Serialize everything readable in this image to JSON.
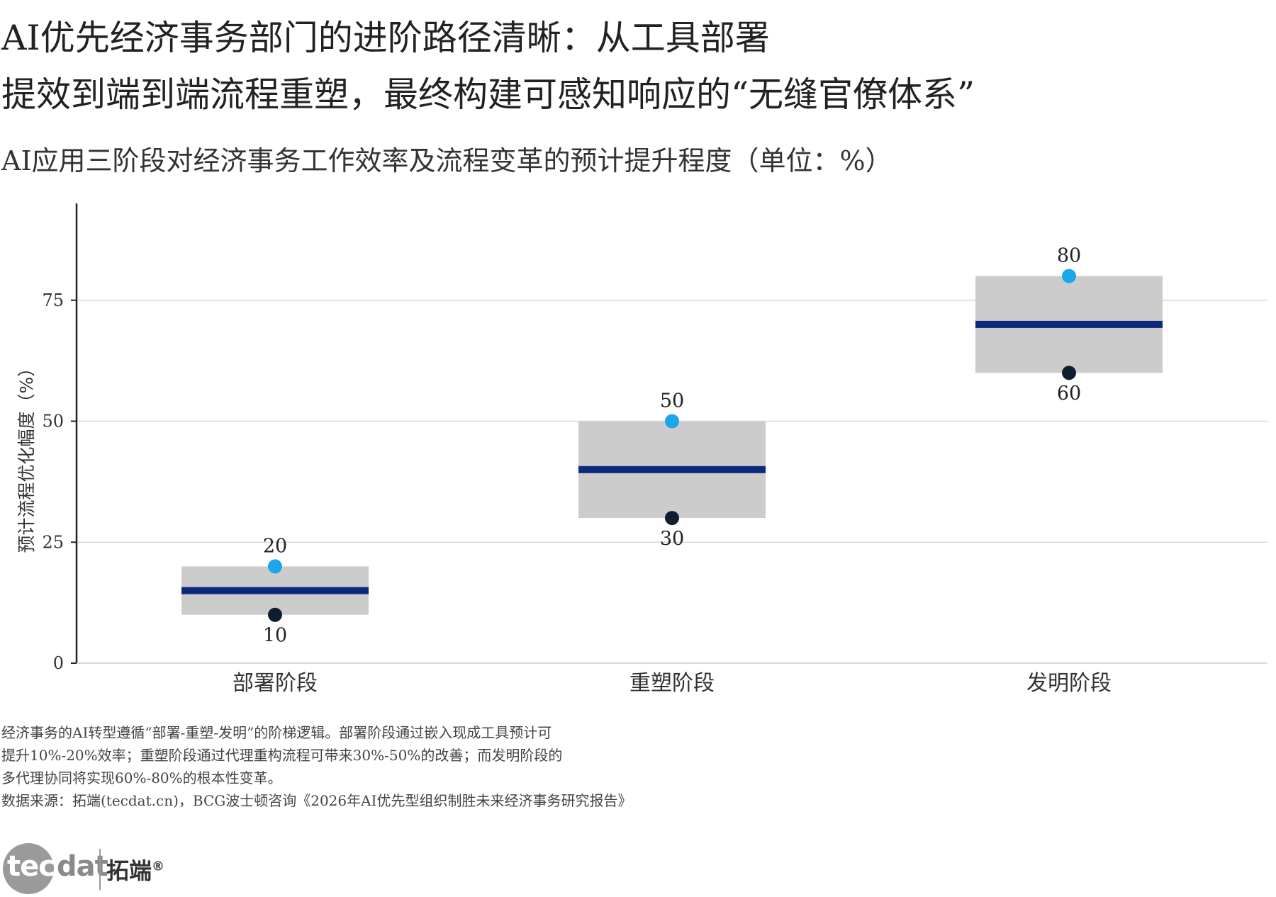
{
  "title_lines": [
    "AI优先经济事务部门的进阶路径清晰：从工具部署",
    "提效到端到端流程重塑，最终构建可感知响应的“无缝官僚体系”"
  ],
  "subtitle": "AI应用三阶段对经济事务工作效率及流程变革的预计提升程度（单位：%）",
  "chart_data": {
    "type": "range",
    "ylabel": "预计流程优化幅度（%）",
    "ylim": [
      0,
      95
    ],
    "yticks": [
      0,
      25,
      50,
      75
    ],
    "grid": true,
    "categories": [
      "部署阶段",
      "重塑阶段",
      "发明阶段"
    ],
    "low": [
      10,
      30,
      60
    ],
    "high": [
      20,
      50,
      80
    ],
    "mid": [
      15,
      40,
      70
    ],
    "colors": {
      "range_box": "#cccccc",
      "mid_line": "#0b2a7c",
      "high_point": "#1aa7ec",
      "low_point": "#0f1e2e",
      "grid": "#d8d8d8",
      "axis": "#222222"
    }
  },
  "notes": [
    "经济事务的AI转型遵循“部署-重塑-发明”的阶梯逻辑。部署阶段通过嵌入现成工具预计可",
    "提升10%-20%效率；重塑阶段通过代理重构流程可带来30%-50%的改善；而发明阶段的",
    "多代理协同将实现60%-80%的根本性变革。",
    "数据来源：拓端(tecdat.cn)，BCG波士顿咨询《2026年AI优先型组织制胜未来经济事务研究报告》"
  ],
  "logo": {
    "left": "tec",
    "right": "dat",
    "cn": "拓端",
    "reg": "®"
  }
}
